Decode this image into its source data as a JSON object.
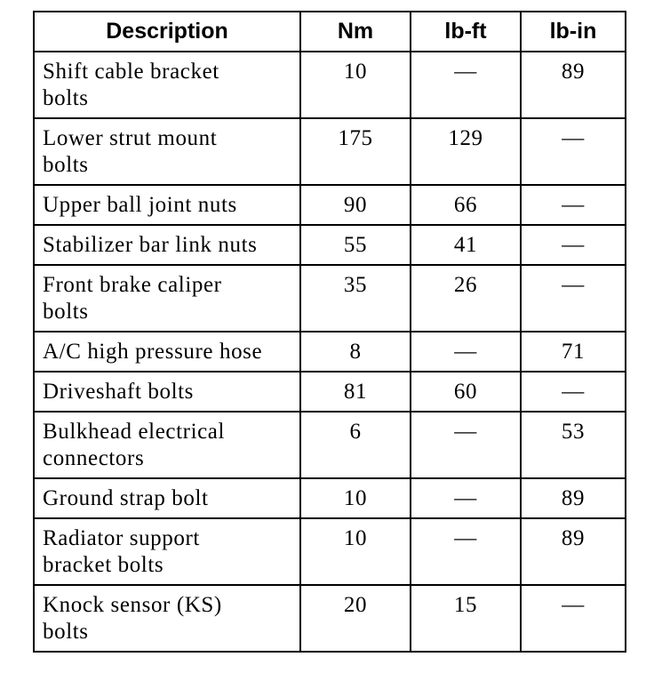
{
  "table": {
    "headers": [
      "Description",
      "Nm",
      "lb-ft",
      "lb-in"
    ],
    "rows": [
      {
        "description": "Shift cable bracket bolts",
        "nm": "10",
        "lbft": "—",
        "lbin": "89"
      },
      {
        "description": "Lower strut mount bolts",
        "nm": "175",
        "lbft": "129",
        "lbin": "—"
      },
      {
        "description": "Upper ball joint nuts",
        "nm": "90",
        "lbft": "66",
        "lbin": "—"
      },
      {
        "description": "Stabilizer bar link nuts",
        "nm": "55",
        "lbft": "41",
        "lbin": "—"
      },
      {
        "description": "Front brake caliper bolts",
        "nm": "35",
        "lbft": "26",
        "lbin": "—"
      },
      {
        "description": "A/C high pressure hose",
        "nm": "8",
        "lbft": "—",
        "lbin": "71"
      },
      {
        "description": "Driveshaft bolts",
        "nm": "81",
        "lbft": "60",
        "lbin": "—"
      },
      {
        "description": "Bulkhead electrical connectors",
        "nm": "6",
        "lbft": "—",
        "lbin": "53"
      },
      {
        "description": "Ground strap bolt",
        "nm": "10",
        "lbft": "—",
        "lbin": "89"
      },
      {
        "description": "Radiator support bracket bolts",
        "nm": "10",
        "lbft": "—",
        "lbin": "89"
      },
      {
        "description": "Knock sensor (KS) bolts",
        "nm": "20",
        "lbft": "15",
        "lbin": "—"
      }
    ]
  }
}
